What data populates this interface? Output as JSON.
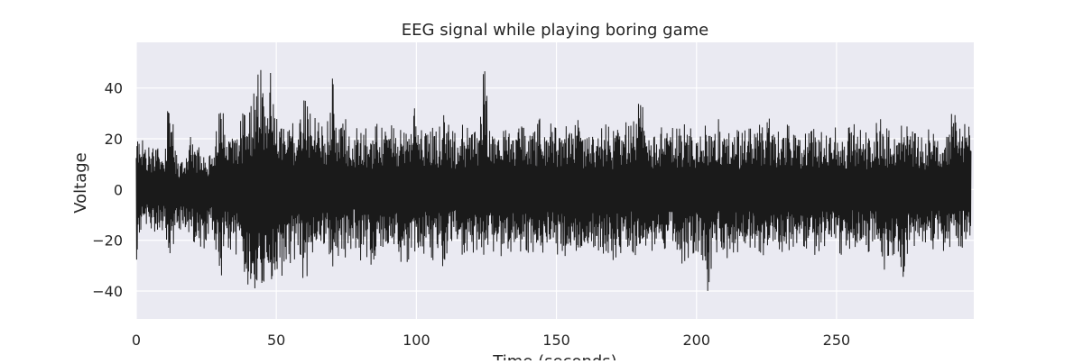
{
  "chart_data": {
    "type": "line",
    "title": "EEG signal while playing boring game",
    "xlabel": "Time (seconds)",
    "ylabel": "Voltage",
    "xlim": [
      0,
      299
    ],
    "ylim": [
      -51,
      58
    ],
    "xticks": [
      0,
      50,
      100,
      150,
      200,
      250
    ],
    "yticks": [
      -40,
      -20,
      0,
      20,
      40
    ],
    "grid": true,
    "legend": "none",
    "colors": {
      "background": "#eaeaf2",
      "grid": "#ffffff",
      "line": "#1a1a1a",
      "text": "#262626"
    },
    "series": [
      {
        "x": [
          0,
          2,
          4,
          6,
          8,
          10,
          12,
          14,
          16,
          18,
          20,
          22,
          24,
          26,
          28,
          30,
          32,
          34,
          36,
          38,
          40,
          42,
          44,
          46,
          48,
          50,
          52,
          54,
          56,
          58,
          60,
          62,
          64,
          66,
          68,
          70,
          72,
          74,
          76,
          78,
          80,
          82,
          84,
          86,
          88,
          90,
          92,
          94,
          96,
          98,
          100,
          102,
          104,
          106,
          108,
          110,
          112,
          114,
          116,
          118,
          120,
          122,
          124,
          126,
          128,
          130,
          132,
          134,
          136,
          138,
          140,
          142,
          144,
          146,
          148,
          150,
          152,
          154,
          156,
          158,
          160,
          162,
          164,
          166,
          168,
          170,
          172,
          174,
          176,
          178,
          180,
          182,
          184,
          186,
          188,
          190,
          192,
          194,
          196,
          198,
          200,
          202,
          204,
          206,
          208,
          210,
          212,
          214,
          216,
          218,
          220,
          222,
          224,
          226,
          228,
          230,
          232,
          234,
          236,
          238,
          240,
          242,
          244,
          246,
          248,
          250,
          252,
          254,
          256,
          258,
          260,
          262,
          264,
          266,
          268,
          270,
          272,
          274,
          276,
          278,
          280,
          282,
          284,
          286,
          288,
          290,
          292,
          294,
          296,
          298
        ],
        "y_max": [
          24,
          22,
          21,
          18,
          20,
          15,
          42,
          14,
          12,
          18,
          22,
          17,
          15,
          13,
          16,
          41,
          20,
          25,
          22,
          30,
          28,
          38,
          48,
          44,
          46,
          40,
          30,
          28,
          26,
          24,
          36,
          30,
          28,
          25,
          24,
          44,
          26,
          30,
          24,
          22,
          28,
          24,
          22,
          26,
          24,
          27,
          24,
          22,
          30,
          24,
          44,
          26,
          24,
          28,
          24,
          30,
          24,
          22,
          26,
          24,
          27,
          26,
          52,
          26,
          24,
          30,
          26,
          24,
          28,
          24,
          26,
          22,
          28,
          24,
          26,
          24,
          22,
          26,
          24,
          28,
          22,
          26,
          24,
          24,
          26,
          22,
          28,
          24,
          30,
          26,
          38,
          24,
          22,
          26,
          24,
          25,
          24,
          24,
          26,
          24,
          22,
          24,
          26,
          24,
          28,
          24,
          26,
          24,
          22,
          24,
          24,
          26,
          24,
          28,
          24,
          22,
          26,
          24,
          24,
          22,
          22,
          24,
          22,
          24,
          26,
          24,
          22,
          24,
          26,
          24,
          22,
          24,
          26,
          28,
          24,
          22,
          24,
          26,
          24,
          22,
          24,
          22,
          26,
          24,
          22,
          24,
          35,
          24,
          26,
          24
        ],
        "y_min": [
          -32,
          -12,
          -14,
          -16,
          -18,
          -15,
          -35,
          -14,
          -16,
          -18,
          -20,
          -22,
          -33,
          -18,
          -20,
          -37,
          -22,
          -24,
          -26,
          -30,
          -38,
          -46,
          -40,
          -44,
          -42,
          -38,
          -34,
          -30,
          -28,
          -26,
          -38,
          -30,
          -28,
          -26,
          -24,
          -35,
          -26,
          -28,
          -24,
          -22,
          -28,
          -26,
          -30,
          -24,
          -26,
          -26,
          -24,
          -28,
          -30,
          -26,
          -28,
          -26,
          -24,
          -28,
          -26,
          -32,
          -24,
          -22,
          -26,
          -24,
          -30,
          -26,
          -29,
          -26,
          -24,
          -26,
          -28,
          -24,
          -22,
          -26,
          -28,
          -24,
          -26,
          -24,
          -22,
          -26,
          -24,
          -28,
          -22,
          -26,
          -24,
          -24,
          -22,
          -26,
          -24,
          -28,
          -26,
          -24,
          -22,
          -26,
          -24,
          -22,
          -24,
          -26,
          -24,
          -22,
          -24,
          -30,
          -28,
          -26,
          -24,
          -26,
          -40,
          -26,
          -24,
          -28,
          -26,
          -24,
          -26,
          -24,
          -22,
          -24,
          -26,
          -24,
          -22,
          -24,
          -26,
          -22,
          -24,
          -22,
          -24,
          -26,
          -24,
          -22,
          -24,
          -24,
          -26,
          -24,
          -22,
          -24,
          -26,
          -24,
          -22,
          -24,
          -38,
          -26,
          -24,
          -43,
          -24,
          -22,
          -24,
          -26,
          -24,
          -22,
          -24,
          -26,
          -24,
          -22,
          -24,
          -22
        ]
      }
    ]
  }
}
